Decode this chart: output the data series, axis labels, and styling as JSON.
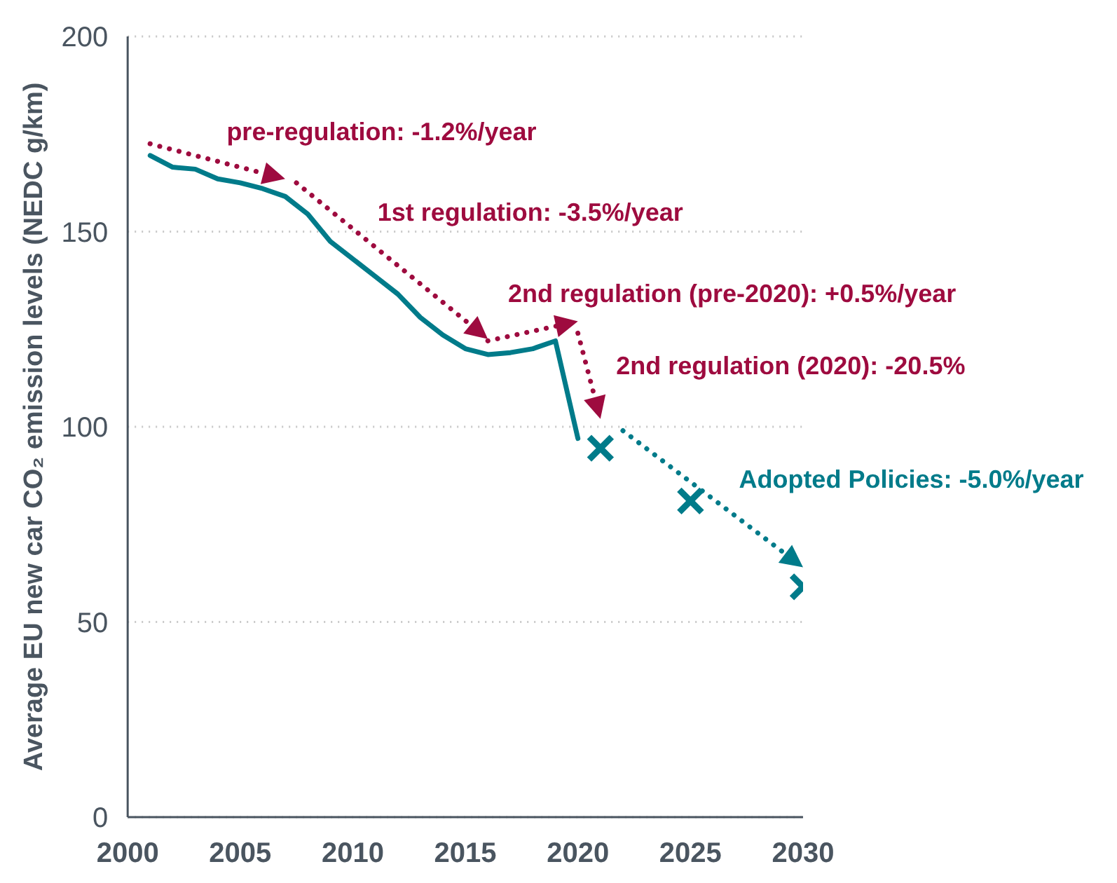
{
  "chart_data": {
    "type": "line",
    "ylabel": "Average EU new car CO₂ emission levels (NEDC g/km)",
    "xlim": [
      2000,
      2030
    ],
    "xticks": [
      2000,
      2005,
      2010,
      2015,
      2020,
      2025,
      2030
    ],
    "ylim": [
      0,
      200
    ],
    "yticks": [
      0,
      50,
      100,
      150,
      200
    ],
    "grid": "y",
    "series": [
      {
        "color": "#007b8a",
        "line_style": "solid",
        "x": [
          2001,
          2002,
          2003,
          2004,
          2005,
          2006,
          2007,
          2008,
          2009,
          2010,
          2011,
          2012,
          2013,
          2014,
          2015,
          2016,
          2017,
          2018,
          2019,
          2020
        ],
        "values": [
          169.5,
          166.5,
          166,
          163.5,
          162.5,
          161,
          159,
          154.5,
          147.5,
          143,
          138.5,
          134,
          128,
          123.5,
          120,
          118.5,
          119,
          120,
          122,
          97
        ]
      },
      {
        "type": "scatter",
        "color": "#007b8a",
        "marker": "cross",
        "x": [
          2021,
          2025,
          2030
        ],
        "values": [
          94.5,
          81,
          59
        ]
      }
    ],
    "annotations": [
      "pre-regulation: -1.2%/year",
      "1st regulation: -3.5%/year",
      "2nd regulation (pre-2020): +0.5%/year",
      "2nd regulation (2020): -20.5%",
      "Adopted Policies: -5.0%/year"
    ]
  }
}
